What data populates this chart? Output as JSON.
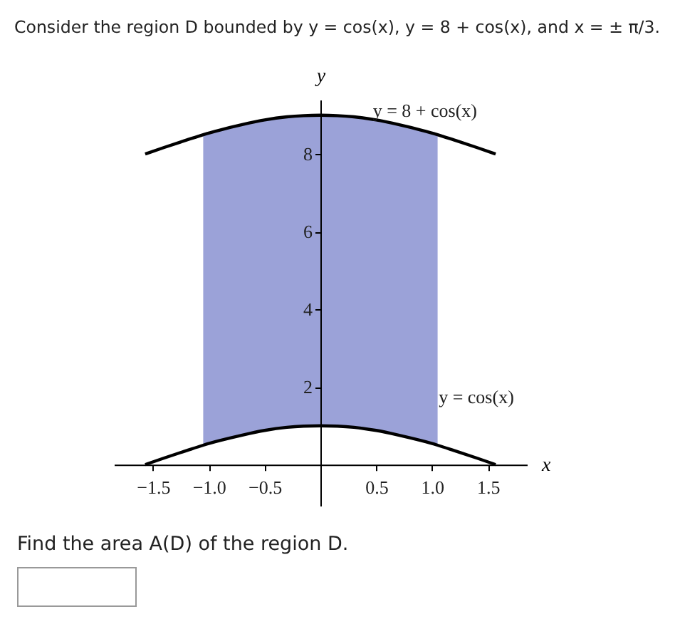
{
  "chart_data": {
    "type": "line",
    "title": "Consider the region D bounded by y = cos(x), y = 8 + cos(x), and x = ± π/3.",
    "xlabel": "x",
    "ylabel": "y",
    "xlim": [
      -1.85,
      1.85
    ],
    "ylim": [
      -1.06,
      9.4
    ],
    "xticks": [
      {
        "value": -1.5,
        "label": "−1.5"
      },
      {
        "value": -1.0,
        "label": "−1.0"
      },
      {
        "value": -0.5,
        "label": "−0.5"
      },
      {
        "value": 0.5,
        "label": "0.5"
      },
      {
        "value": 1.0,
        "label": "1.0"
      },
      {
        "value": 1.5,
        "label": "1.5"
      }
    ],
    "yticks": [
      2,
      4,
      6,
      8
    ],
    "grid": false,
    "marker": "none",
    "line_style": "solid",
    "series": [
      {
        "color": "#000000",
        "x": [
          -1.57,
          -1.4,
          -1.2,
          -1.05,
          -0.9,
          -0.7,
          -0.5,
          -0.3,
          -0.15,
          0,
          0.15,
          0.3,
          0.5,
          0.7,
          0.9,
          1.05,
          1.2,
          1.4,
          1.57
        ],
        "values": [
          0,
          0.17,
          0.36,
          0.5,
          0.62,
          0.76,
          0.88,
          0.96,
          0.99,
          1,
          0.99,
          0.96,
          0.88,
          0.76,
          0.62,
          0.5,
          0.36,
          0.17,
          0
        ]
      },
      {
        "color": "#000000",
        "x": [
          -1.57,
          -1.4,
          -1.2,
          -1.05,
          -0.9,
          -0.7,
          -0.5,
          -0.3,
          -0.15,
          0,
          0.15,
          0.3,
          0.5,
          0.7,
          0.9,
          1.05,
          1.2,
          1.4,
          1.57
        ],
        "values": [
          8,
          8.17,
          8.36,
          8.5,
          8.62,
          8.76,
          8.88,
          8.96,
          8.99,
          9,
          8.99,
          8.96,
          8.88,
          8.76,
          8.62,
          8.5,
          8.36,
          8.17,
          8
        ],
        "lower": [
          null,
          null,
          null,
          0.5,
          0.62,
          0.76,
          0.88,
          0.96,
          0.99,
          1,
          0.99,
          0.96,
          0.88,
          0.76,
          0.62,
          0.5,
          null,
          null,
          null
        ],
        "upper": [
          null,
          null,
          null,
          8.5,
          8.62,
          8.76,
          8.88,
          8.96,
          8.99,
          9,
          8.99,
          8.96,
          8.88,
          8.76,
          8.62,
          8.5,
          null,
          null,
          null
        ]
      }
    ],
    "annotations": [
      {
        "text": "y = 8 + cos(x)",
        "x": 0.47,
        "y": 9.1
      },
      {
        "text": "y = cos(x)",
        "x": 1.06,
        "y": 1.73
      },
      "Find the area A(D) of the region D."
    ]
  }
}
